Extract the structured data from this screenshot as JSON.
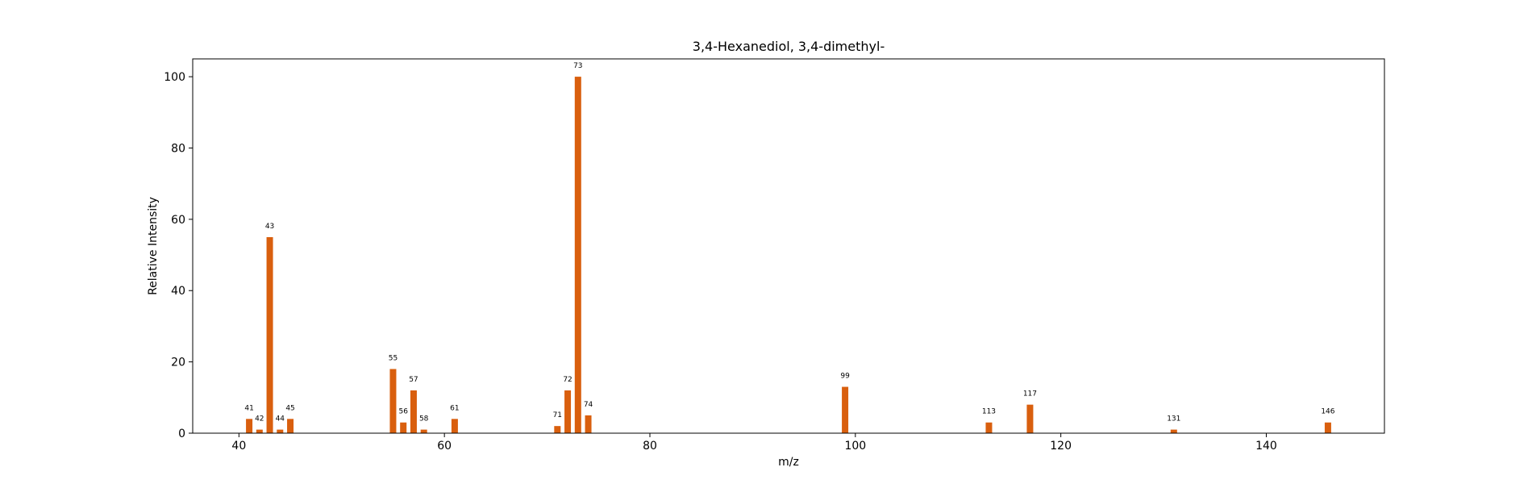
{
  "chart_data": {
    "type": "bar",
    "title": "3,4-Hexanediol, 3,4-dimethyl-",
    "xlabel": "m/z",
    "ylabel": "Relative Intensity",
    "xlim": [
      35.5,
      151.5
    ],
    "ylim": [
      0,
      105
    ],
    "xticks": [
      40,
      60,
      80,
      100,
      120,
      140
    ],
    "yticks": [
      0,
      20,
      40,
      60,
      80,
      100
    ],
    "grid": false,
    "bar_color": "#d95f0e",
    "points": [
      {
        "x": 41,
        "y": 4,
        "label": "41"
      },
      {
        "x": 42,
        "y": 1,
        "label": "42"
      },
      {
        "x": 43,
        "y": 55,
        "label": "43"
      },
      {
        "x": 44,
        "y": 1,
        "label": "44"
      },
      {
        "x": 45,
        "y": 4,
        "label": "45"
      },
      {
        "x": 55,
        "y": 18,
        "label": "55"
      },
      {
        "x": 56,
        "y": 3,
        "label": "56"
      },
      {
        "x": 57,
        "y": 12,
        "label": "57"
      },
      {
        "x": 58,
        "y": 1,
        "label": "58"
      },
      {
        "x": 61,
        "y": 4,
        "label": "61"
      },
      {
        "x": 71,
        "y": 2,
        "label": "71"
      },
      {
        "x": 72,
        "y": 12,
        "label": "72"
      },
      {
        "x": 73,
        "y": 100,
        "label": "73"
      },
      {
        "x": 74,
        "y": 5,
        "label": "74"
      },
      {
        "x": 99,
        "y": 13,
        "label": "99"
      },
      {
        "x": 113,
        "y": 3,
        "label": "113"
      },
      {
        "x": 117,
        "y": 8,
        "label": "117"
      },
      {
        "x": 131,
        "y": 1,
        "label": "131"
      },
      {
        "x": 146,
        "y": 3,
        "label": "146"
      }
    ]
  }
}
